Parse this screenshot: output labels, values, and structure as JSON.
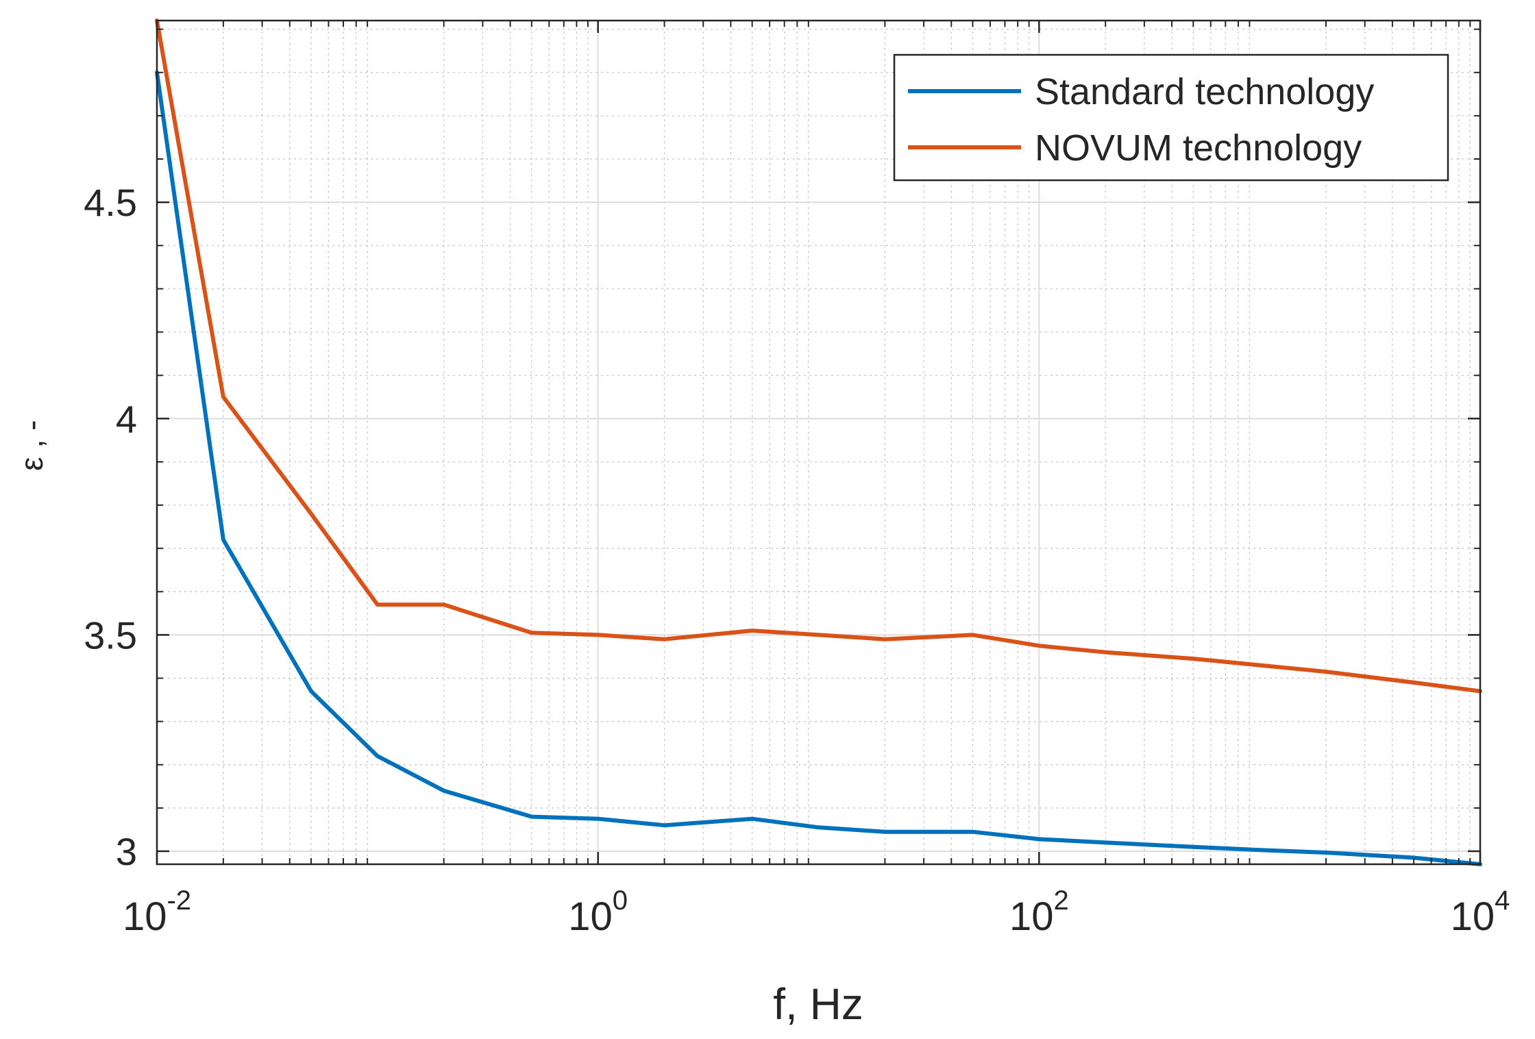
{
  "chart_data": {
    "type": "line",
    "title": "",
    "xlabel": "f, Hz",
    "ylabel": "ε , -",
    "xscale": "log",
    "xlim": [
      0.01,
      10000
    ],
    "ylim": [
      2.97,
      4.92
    ],
    "grid": true,
    "minor_grid": true,
    "legend_position": "top-right",
    "x_ticks": [
      {
        "base": "10",
        "exp": "-2",
        "value": 0.01
      },
      {
        "base": "10",
        "exp": "0",
        "value": 1
      },
      {
        "base": "10",
        "exp": "2",
        "value": 100
      },
      {
        "base": "10",
        "exp": "4",
        "value": 10000
      }
    ],
    "y_ticks": [
      {
        "label": "3",
        "value": 3
      },
      {
        "label": "3.5",
        "value": 3.5
      },
      {
        "label": "4",
        "value": 4
      },
      {
        "label": "4.5",
        "value": 4.5
      }
    ],
    "x": [
      0.01,
      0.02,
      0.05,
      0.1,
      0.2,
      0.5,
      1,
      2,
      5,
      10,
      20,
      50,
      100,
      200,
      500,
      1000,
      2000,
      5000,
      10000
    ],
    "series": [
      {
        "name": "Standard technology",
        "color": "#0072BD",
        "values": [
          4.8,
          3.72,
          3.37,
          3.22,
          3.14,
          3.08,
          3.075,
          3.06,
          3.075,
          3.055,
          3.045,
          3.045,
          3.028,
          3.02,
          3.01,
          3.003,
          2.997,
          2.985,
          2.97
        ]
      },
      {
        "name": "NOVUM technology",
        "color": "#D95319",
        "values": [
          4.92,
          4.05,
          3.78,
          3.57,
          3.57,
          3.505,
          3.5,
          3.49,
          3.51,
          3.5,
          3.49,
          3.5,
          3.475,
          3.46,
          3.445,
          3.43,
          3.415,
          3.39,
          3.37
        ]
      }
    ]
  }
}
